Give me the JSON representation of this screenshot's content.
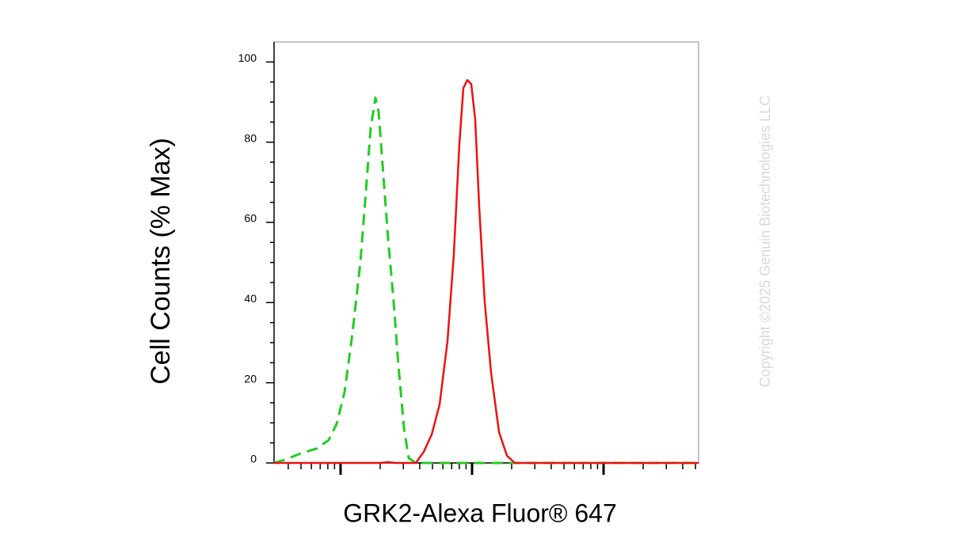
{
  "chart_data": {
    "type": "line",
    "xlabel": "GRK2-Alexa Fluor® 647",
    "ylabel": "Cell Counts (% Max)",
    "watermark": "Copyright ©2025 Genuin Biotechnologies LLC",
    "xscale": "log",
    "xlim": [
      312,
      528000
    ],
    "xticks": [
      1000,
      10000,
      100000
    ],
    "xminorticks": [
      400,
      500,
      600,
      700,
      800,
      900,
      2000,
      3000,
      4000,
      5000,
      6000,
      7000,
      8000,
      9000,
      20000,
      30000,
      40000,
      50000,
      60000,
      70000,
      80000,
      90000,
      200000,
      300000,
      400000,
      500000
    ],
    "ylim": [
      0,
      105
    ],
    "yticks": [
      0,
      20,
      40,
      60,
      80,
      100
    ],
    "yminorticks": [
      5,
      10,
      15,
      25,
      30,
      35,
      45,
      50,
      55,
      65,
      70,
      75,
      85,
      90,
      95
    ],
    "series": [
      {
        "color": "#22cc22",
        "dashed": true,
        "x": [
          312,
          378,
          500,
          659,
          812,
          933,
          1072,
          1231,
          1415,
          1560,
          1695,
          1842,
          1946,
          2115,
          2298,
          2533,
          2754,
          3035,
          3298,
          3735,
          528000
        ],
        "values": [
          0,
          0.8,
          2.4,
          3.6,
          5.7,
          9.7,
          17.6,
          32.3,
          50.1,
          67.9,
          83.6,
          91.1,
          87.6,
          71.8,
          56.0,
          40.2,
          24.3,
          8.7,
          1.2,
          0,
          0
        ]
      },
      {
        "color": "#ee1111",
        "dashed": false,
        "x": [
          312,
          2000,
          2298,
          2641,
          3735,
          4295,
          4933,
          5664,
          6506,
          7267,
          8013,
          8586,
          9204,
          9862,
          10570,
          11330,
          12480,
          13950,
          16030,
          18420,
          21130,
          528000
        ],
        "values": [
          0,
          0,
          0.2,
          0,
          0,
          2.8,
          7.1,
          14.6,
          30.4,
          52.1,
          79.7,
          93.5,
          95.5,
          94.5,
          85.6,
          63.9,
          40.2,
          22.5,
          7.7,
          1.8,
          0,
          0
        ]
      }
    ]
  }
}
